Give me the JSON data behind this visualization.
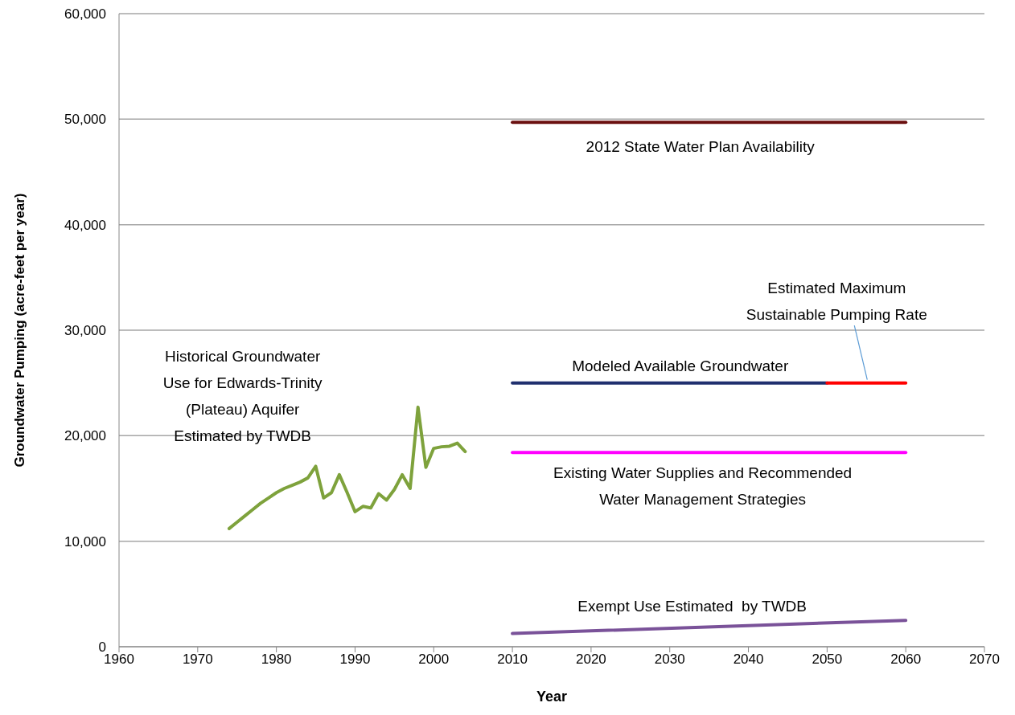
{
  "chart_data": {
    "type": "line",
    "xlabel": "Year",
    "ylabel": "Groundwater Pumping (acre-feet per year)",
    "xlim": [
      1960,
      2070
    ],
    "xticks": [
      1960,
      1970,
      1980,
      1990,
      2000,
      2010,
      2020,
      2030,
      2040,
      2050,
      2060,
      2070
    ],
    "ylim": [
      0,
      60000
    ],
    "yticks": [
      {
        "value": 0,
        "label": "0"
      },
      {
        "value": 10000,
        "label": "10,000"
      },
      {
        "value": 20000,
        "label": "20,000"
      },
      {
        "value": 30000,
        "label": "30,000"
      },
      {
        "value": 40000,
        "label": "40,000"
      },
      {
        "value": 50000,
        "label": "50,000"
      },
      {
        "value": 60000,
        "label": "60,000"
      }
    ],
    "grid": "y",
    "marker": "none",
    "line_style": "solid",
    "series": [
      {
        "name": "Historical Groundwater Use for Edwards-Trinity (Plateau) Aquifer Estimated by TWDB",
        "color": "#7ea23c",
        "x": [
          1974,
          1975,
          1976,
          1977,
          1978,
          1979,
          1980,
          1981,
          1982,
          1983,
          1984,
          1985,
          1986,
          1987,
          1988,
          1989,
          1990,
          1991,
          1992,
          1993,
          1994,
          1995,
          1996,
          1997,
          1998,
          1999,
          2000,
          2001,
          2002,
          2003,
          2004
        ],
        "values": [
          11200,
          11800,
          12400,
          13000,
          13600,
          14100,
          14600,
          15000,
          15300,
          15600,
          16000,
          17100,
          14100,
          14600,
          16300,
          14600,
          12800,
          13300,
          13150,
          14500,
          13900,
          14900,
          16300,
          15000,
          22700,
          17000,
          18800,
          18950,
          19000,
          19300,
          18500
        ]
      },
      {
        "name": "2012 State Water Plan Availability",
        "color": "#6b1010",
        "x": [
          2010,
          2060
        ],
        "values": [
          49700,
          49700
        ]
      },
      {
        "name": "Modeled Available Groundwater",
        "color": "#1f2f6e",
        "x": [
          2010,
          2050
        ],
        "values": [
          25000,
          25000
        ]
      },
      {
        "name": "Estimated Maximum Sustainable Pumping Rate",
        "color": "#ff0000",
        "x": [
          2050,
          2060
        ],
        "values": [
          25000,
          25000
        ]
      },
      {
        "name": "Existing Water Supplies and Recommended Water Management Strategies",
        "color": "#ff00ff",
        "x": [
          2010,
          2060
        ],
        "values": [
          18400,
          18400
        ]
      },
      {
        "name": "Exempt Use Estimated  by TWDB",
        "color": "#7a5299",
        "x": [
          2010,
          2060
        ],
        "values": [
          1250,
          2500
        ]
      }
    ]
  }
}
